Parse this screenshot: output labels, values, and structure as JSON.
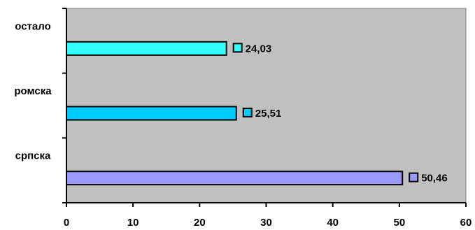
{
  "chart_data": {
    "type": "bar",
    "orientation": "horizontal",
    "title": "",
    "xlabel": "",
    "ylabel": "",
    "categories": [
      "остало",
      "ромска",
      "српска"
    ],
    "values": [
      24.03,
      25.51,
      50.46
    ],
    "value_labels": [
      "24,03",
      "25,51",
      "50,46"
    ],
    "bar_colors": [
      "#33ffff",
      "#00ccff",
      "#9999ff"
    ],
    "xlim": [
      0,
      60
    ],
    "xticks": [
      0,
      10,
      20,
      30,
      40,
      50,
      60
    ],
    "xtick_labels": [
      "0",
      "10",
      "20",
      "30",
      "40",
      "50",
      "60"
    ],
    "grid": false,
    "plot_background": "#c0c0c0"
  }
}
